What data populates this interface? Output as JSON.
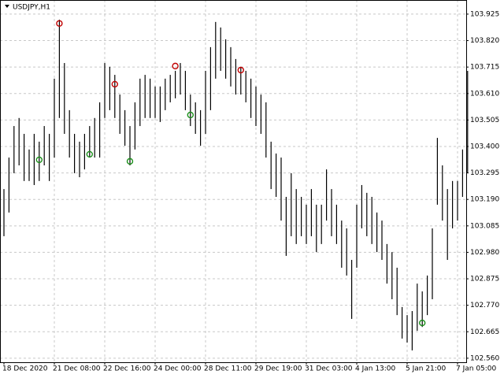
{
  "chart_data": {
    "type": "ohlc",
    "title": "USDJPY,H1",
    "color": "#000000",
    "grid": true,
    "categories": [
      "18 Dec 2020",
      null,
      null,
      null,
      null,
      null,
      null,
      null,
      null,
      null,
      "21 Dec 08:00",
      null,
      null,
      null,
      null,
      null,
      null,
      null,
      null,
      null,
      "22 Dec 16:00",
      null,
      null,
      null,
      null,
      null,
      null,
      null,
      null,
      null,
      "24 Dec 00:00",
      null,
      null,
      null,
      null,
      null,
      null,
      null,
      null,
      null,
      "28 Dec 11:00",
      null,
      null,
      null,
      null,
      null,
      null,
      null,
      null,
      null,
      "29 Dec 19:00",
      null,
      null,
      null,
      null,
      null,
      null,
      null,
      null,
      null,
      "31 Dec 03:00",
      null,
      null,
      null,
      null,
      null,
      null,
      null,
      null,
      null,
      "4 Jan 13:00",
      null,
      null,
      null,
      null,
      null,
      null,
      null,
      null,
      null,
      "5 Jan 21:00",
      null,
      null,
      null,
      null,
      null,
      null,
      null,
      null,
      null,
      "7 Jan 05:00",
      null,
      null
    ],
    "high": [
      103.231,
      103.356,
      103.481,
      103.513,
      103.45,
      103.388,
      103.45,
      103.419,
      103.481,
      103.45,
      103.669,
      103.903,
      103.731,
      103.544,
      103.45,
      103.419,
      103.45,
      103.481,
      103.513,
      103.575,
      103.731,
      103.716,
      103.684,
      103.606,
      103.544,
      103.481,
      103.575,
      103.669,
      103.684,
      103.669,
      103.638,
      103.638,
      103.669,
      103.684,
      103.7,
      103.731,
      103.7,
      103.606,
      103.575,
      103.544,
      103.7,
      103.794,
      103.894,
      103.872,
      103.825,
      103.794,
      103.747,
      103.716,
      103.7,
      103.669,
      103.638,
      103.606,
      103.575,
      103.419,
      103.372,
      103.356,
      103.2,
      103.294,
      103.231,
      103.2,
      103.169,
      103.231,
      103.169,
      103.169,
      103.309,
      103.231,
      103.169,
      103.106,
      103.075,
      102.95,
      103.169,
      103.247,
      103.216,
      103.2,
      103.138,
      103.106,
      103.013,
      102.981,
      102.919,
      102.763,
      102.731,
      102.747,
      102.856,
      102.825,
      102.888,
      103.075,
      103.434,
      103.325,
      103.231,
      103.263,
      103.263,
      103.388,
      103.7
    ],
    "low": [
      103.044,
      103.138,
      103.294,
      103.325,
      103.263,
      103.263,
      103.247,
      103.263,
      103.325,
      103.263,
      103.356,
      103.513,
      103.45,
      103.356,
      103.294,
      103.278,
      103.309,
      103.356,
      103.356,
      103.356,
      103.513,
      103.544,
      103.513,
      103.45,
      103.403,
      103.325,
      103.388,
      103.481,
      103.513,
      103.513,
      103.513,
      103.497,
      103.544,
      103.575,
      103.591,
      103.606,
      103.544,
      103.481,
      103.45,
      103.403,
      103.45,
      103.544,
      103.669,
      103.7,
      103.669,
      103.638,
      103.606,
      103.606,
      103.575,
      103.513,
      103.481,
      103.45,
      103.356,
      103.231,
      103.2,
      103.106,
      102.966,
      103.044,
      103.013,
      103.044,
      103.013,
      103.044,
      102.981,
      103.013,
      103.106,
      103.044,
      103.013,
      102.919,
      102.888,
      102.716,
      102.919,
      103.075,
      103.044,
      103.013,
      102.981,
      102.95,
      102.856,
      102.794,
      102.731,
      102.638,
      102.622,
      102.591,
      102.669,
      102.684,
      102.731,
      102.794,
      103.169,
      103.106,
      102.95,
      103.075,
      103.106,
      103.2,
      103.294
    ],
    "sell": {
      "color": "#c00000",
      "bars": [
        11,
        22,
        34,
        47
      ],
      "values": [
        103.888,
        103.647,
        103.719,
        103.703
      ]
    },
    "buy": {
      "color": "#1a8f1a",
      "bars": [
        7,
        17,
        25,
        37,
        83
      ],
      "values": [
        103.347,
        103.369,
        103.341,
        103.525,
        102.7
      ]
    },
    "ylim": [
      102.544,
      103.981
    ],
    "yticks": [
      103.925,
      {
        "value": 103.82,
        "label": "103.820"
      },
      103.715,
      {
        "value": 103.61,
        "label": "103.610"
      },
      103.505,
      {
        "value": 103.4,
        "label": "103.400"
      },
      103.295,
      {
        "value": 103.19,
        "label": "103.190"
      },
      103.085,
      {
        "value": 102.98,
        "label": "102.980"
      },
      102.875,
      {
        "value": 102.77,
        "label": "102.770"
      },
      102.665,
      {
        "value": 102.56,
        "label": "102.560"
      }
    ]
  }
}
